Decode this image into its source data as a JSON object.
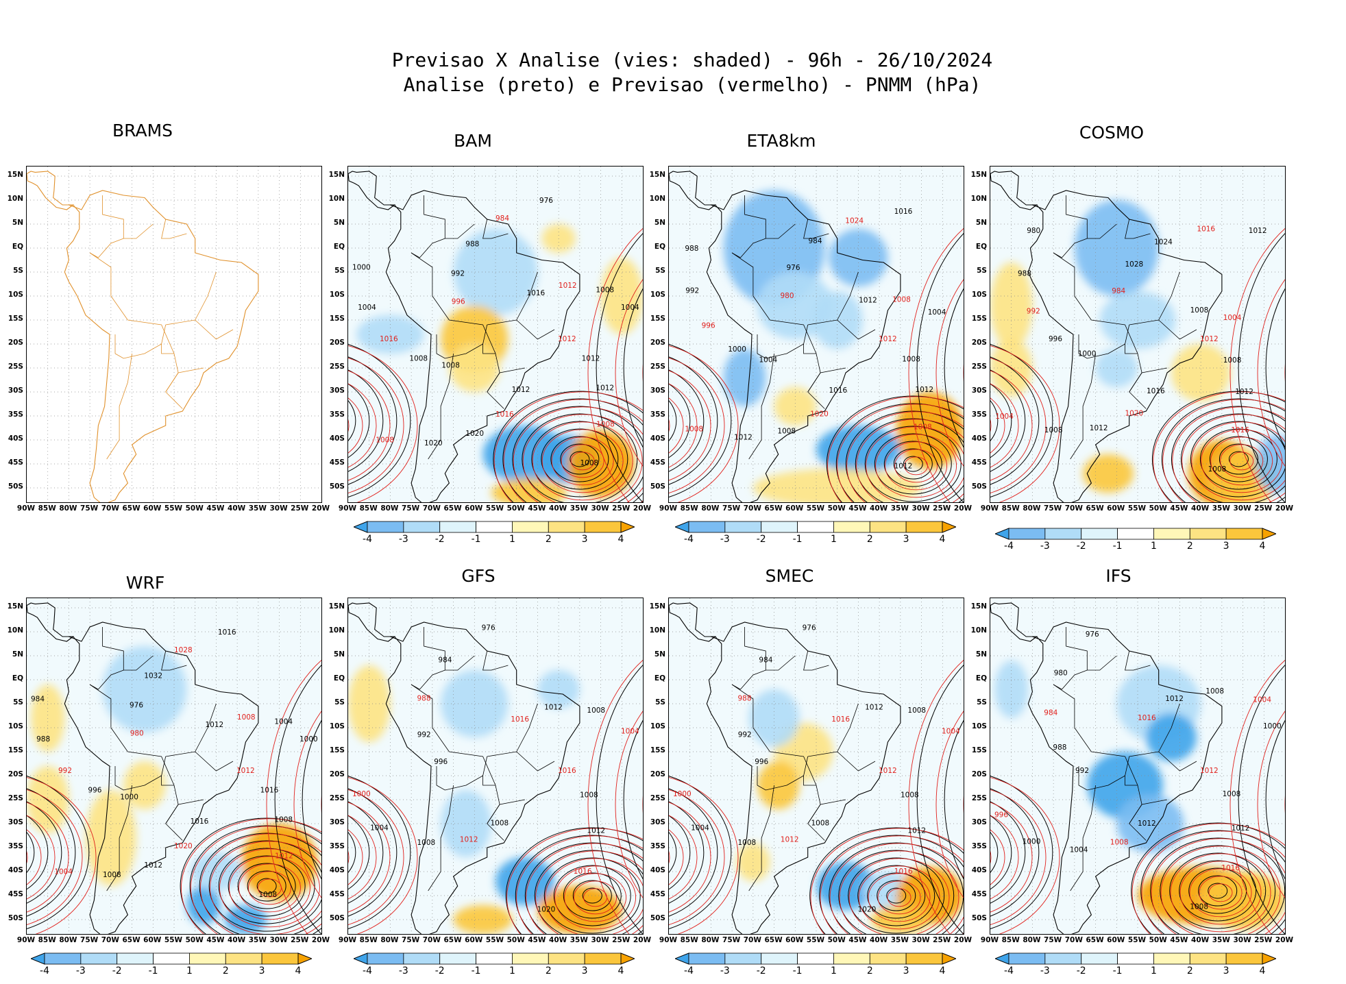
{
  "title": {
    "line1": "Previsao X Analise (vies: shaded) - 96h - 26/10/2024",
    "line2": "Analise (preto) e Previsao (vermelho) - PNMM (hPa)"
  },
  "chart_data": {
    "type": "heatmap",
    "variable": "PNMM (hPa)",
    "lead_time": "96h",
    "date": "26/10/2024",
    "lat_ticks": [
      "15N",
      "10N",
      "5N",
      "EQ",
      "5S",
      "10S",
      "15S",
      "20S",
      "25S",
      "30S",
      "35S",
      "40S",
      "45S",
      "50S"
    ],
    "lon_ticks": [
      "90W",
      "85W",
      "80W",
      "75W",
      "70W",
      "65W",
      "60W",
      "55W",
      "50W",
      "45W",
      "40W",
      "35W",
      "30W",
      "25W",
      "20W"
    ],
    "colorbar": {
      "labels": [
        "-4",
        "-3",
        "-2",
        "-1",
        "1",
        "2",
        "3",
        "4"
      ],
      "colors": [
        "#3fa4ea",
        "#7bbcf2",
        "#b0dcf7",
        "#dff4fb",
        "#ffffff",
        "#fff7b8",
        "#fde383",
        "#fbc63c",
        "#f7a200"
      ]
    },
    "panels": [
      {
        "model": "BRAMS",
        "has_data": false,
        "contours": []
      },
      {
        "model": "BAM",
        "has_data": true,
        "contours": [
          "1012",
          "1012",
          "1012",
          "1008",
          "1008",
          "1012",
          "1016",
          "1020",
          "1020",
          "1008",
          "1008",
          "1008",
          "1016",
          "1004",
          "1000",
          "996",
          "992",
          "988",
          "984",
          "976",
          "1016",
          "1012",
          "1008",
          "1004"
        ]
      },
      {
        "model": "ETA8km",
        "has_data": true,
        "contours": [
          "1012",
          "1008",
          "1012",
          "1008",
          "1012",
          "1016",
          "1020",
          "1008",
          "1012",
          "1008",
          "1004",
          "1000",
          "996",
          "992",
          "988",
          "980",
          "976",
          "984",
          "1024",
          "1016",
          "1012",
          "1008",
          "1004"
        ]
      },
      {
        "model": "COSMO",
        "has_data": true,
        "contours": [
          "1012",
          "1008",
          "1012",
          "1016",
          "1008",
          "1016",
          "1020",
          "1012",
          "1008",
          "1004",
          "1000",
          "996",
          "992",
          "988",
          "980",
          "984",
          "1028",
          "1024",
          "1016",
          "1012",
          "1008",
          "1004"
        ]
      },
      {
        "model": "WRF",
        "has_data": true,
        "contours": [
          "1012",
          "1016",
          "1008",
          "1012",
          "1008",
          "1016",
          "1020",
          "1012",
          "1008",
          "1004",
          "1000",
          "996",
          "992",
          "988",
          "984",
          "980",
          "976",
          "1032",
          "1028",
          "1016",
          "1012",
          "1008",
          "1004",
          "1000"
        ]
      },
      {
        "model": "GFS",
        "has_data": true,
        "contours": [
          "1016",
          "1008",
          "1012",
          "1016",
          "1020",
          "1008",
          "1012",
          "1008",
          "1004",
          "1000",
          "996",
          "992",
          "988",
          "984",
          "976",
          "1016",
          "1012",
          "1008",
          "1004"
        ]
      },
      {
        "model": "SMEC",
        "has_data": true,
        "contours": [
          "1012",
          "1008",
          "1012",
          "1016",
          "1020",
          "1008",
          "1012",
          "1008",
          "1004",
          "1000",
          "996",
          "992",
          "988",
          "984",
          "976",
          "1016",
          "1012",
          "1008",
          "1004"
        ]
      },
      {
        "model": "IFS",
        "has_data": true,
        "contours": [
          "1012",
          "1008",
          "1012",
          "1016",
          "1008",
          "1012",
          "1008",
          "1004",
          "1000",
          "996",
          "992",
          "988",
          "984",
          "980",
          "976",
          "1016",
          "1012",
          "1008",
          "1004",
          "1000"
        ]
      }
    ]
  }
}
